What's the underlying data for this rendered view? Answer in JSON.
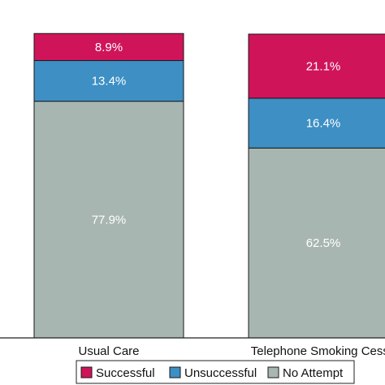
{
  "chart_data": {
    "type": "bar",
    "stacked": true,
    "orientation": "vertical",
    "categories": [
      "Usual Care",
      "Telephone Smoking Cessa"
    ],
    "series": [
      {
        "name": "No Attempt",
        "color": "#a8b6b2",
        "values": [
          77.9,
          62.5
        ],
        "labels": [
          "77.9%",
          "62.5%"
        ]
      },
      {
        "name": "Unsuccessful",
        "color": "#3d8fc4",
        "values": [
          13.4,
          16.4
        ],
        "labels": [
          "13.4%",
          "16.4%"
        ]
      },
      {
        "name": "Successful",
        "color": "#d0145a",
        "values": [
          8.9,
          21.1
        ],
        "labels": [
          "8.9%",
          "21.1%"
        ]
      }
    ],
    "ylim": [
      0,
      100
    ],
    "legend": {
      "placement": "bottom",
      "order": [
        "Successful",
        "Unsuccessful",
        "No Attempt"
      ]
    },
    "grid": false
  }
}
